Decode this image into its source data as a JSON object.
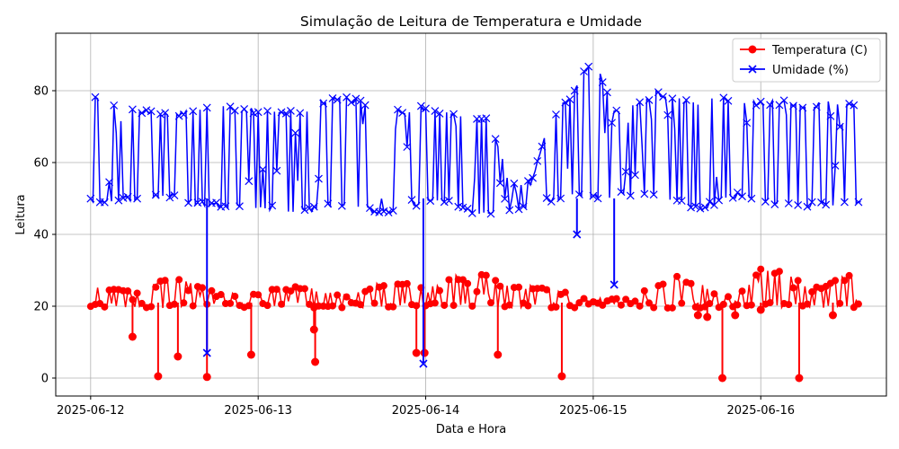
{
  "chart_data": {
    "type": "line",
    "title": "Simulação de Leitura de Temperatura e Umidade",
    "xlabel": "Data e Hora",
    "ylabel": "Leitura",
    "x_range_days": [
      "2025-06-11T19:00",
      "2025-06-16T18:00"
    ],
    "ylim": [
      -5,
      96
    ],
    "x_ticks": [
      "2025-06-12",
      "2025-06-13",
      "2025-06-14",
      "2025-06-15",
      "2025-06-16"
    ],
    "y_ticks": [
      0,
      20,
      40,
      60,
      80
    ],
    "grid": true,
    "legend": "top-right",
    "series": [
      {
        "name": "Temperatura (C)",
        "color": "#ff0000",
        "marker": "circle",
        "x": [
          "2025-06-12T00:00",
          "2025-06-12T03:00",
          "2025-06-12T06:00",
          "2025-06-12T09:00",
          "2025-06-12T12:00",
          "2025-06-12T15:00",
          "2025-06-12T18:00",
          "2025-06-12T21:00",
          "2025-06-13T00:00",
          "2025-06-13T03:00",
          "2025-06-13T06:00",
          "2025-06-13T09:00",
          "2025-06-13T12:00",
          "2025-06-13T15:00",
          "2025-06-13T18:00",
          "2025-06-13T21:00",
          "2025-06-14T00:00",
          "2025-06-14T03:00",
          "2025-06-14T06:00",
          "2025-06-14T09:00",
          "2025-06-14T12:00",
          "2025-06-14T15:00",
          "2025-06-14T18:00",
          "2025-06-14T21:00",
          "2025-06-15T00:00",
          "2025-06-15T03:00",
          "2025-06-15T06:00",
          "2025-06-15T09:00",
          "2025-06-15T12:00",
          "2025-06-15T15:00",
          "2025-06-15T18:00",
          "2025-06-15T21:00",
          "2025-06-16T00:00",
          "2025-06-16T03:00",
          "2025-06-16T06:00",
          "2025-06-16T09:00",
          "2025-06-16T12:00",
          "2025-06-16T14:30"
        ],
        "low": [
          19.5,
          19.5,
          19.5,
          19.5,
          19.5,
          19.5,
          19.5,
          19.5,
          19.5,
          19.5,
          19.5,
          19.5,
          19.5,
          19.5,
          19.5,
          19.5,
          19.5,
          19.5,
          19.5,
          19.5,
          19.5,
          19.5,
          19.5,
          19.5,
          20.0,
          20.0,
          20.0,
          19.5,
          19.5,
          19.5,
          19.5,
          20.0,
          19.5,
          19.5,
          19.5,
          19.5,
          19.5,
          19.5
        ],
        "high": [
          27.0,
          25.5,
          24.5,
          26.5,
          28.5,
          27.0,
          24.0,
          23.5,
          24.0,
          25.0,
          26.0,
          24.5,
          23.5,
          25.5,
          27.0,
          26.5,
          25.0,
          27.5,
          30.0,
          28.5,
          25.5,
          26.0,
          25.0,
          23.5,
          22.5,
          22.0,
          23.0,
          26.0,
          28.5,
          27.0,
          24.0,
          24.0,
          30.5,
          30.0,
          27.0,
          26.0,
          29.5,
          28.0
        ],
        "spikes": [
          {
            "x": "2025-06-12T06:00",
            "y": 11.5
          },
          {
            "x": "2025-06-12T09:40",
            "y": 0.5
          },
          {
            "x": "2025-06-12T12:30",
            "y": 6.0
          },
          {
            "x": "2025-06-12T16:40",
            "y": 0.3
          },
          {
            "x": "2025-06-12T23:00",
            "y": 6.5
          },
          {
            "x": "2025-06-13T08:00",
            "y": 13.5
          },
          {
            "x": "2025-06-13T08:10",
            "y": 4.5
          },
          {
            "x": "2025-06-13T22:40",
            "y": 7.0
          },
          {
            "x": "2025-06-13T23:50",
            "y": 7.0
          },
          {
            "x": "2025-06-14T10:20",
            "y": 6.5
          },
          {
            "x": "2025-06-14T19:30",
            "y": 0.5
          },
          {
            "x": "2025-06-15T15:00",
            "y": 17.5
          },
          {
            "x": "2025-06-15T16:20",
            "y": 17.0
          },
          {
            "x": "2025-06-15T18:30",
            "y": 0.0
          },
          {
            "x": "2025-06-15T20:20",
            "y": 17.5
          },
          {
            "x": "2025-06-16T00:00",
            "y": 19.0
          },
          {
            "x": "2025-06-16T05:30",
            "y": 0.0
          },
          {
            "x": "2025-06-16T10:20",
            "y": 17.5
          }
        ]
      },
      {
        "name": "Umidade (%)",
        "color": "#0000ff",
        "marker": "x",
        "x": [
          "2025-06-12T00:00",
          "2025-06-12T03:00",
          "2025-06-12T06:00",
          "2025-06-12T09:00",
          "2025-06-12T12:00",
          "2025-06-12T15:00",
          "2025-06-12T18:00",
          "2025-06-12T21:00",
          "2025-06-13T00:00",
          "2025-06-13T03:00",
          "2025-06-13T06:00",
          "2025-06-13T09:00",
          "2025-06-13T12:00",
          "2025-06-13T15:00",
          "2025-06-13T18:00",
          "2025-06-13T21:00",
          "2025-06-14T00:00",
          "2025-06-14T03:00",
          "2025-06-14T06:00",
          "2025-06-14T09:00",
          "2025-06-14T12:00",
          "2025-06-14T15:00",
          "2025-06-14T18:00",
          "2025-06-14T21:00",
          "2025-06-15T00:00",
          "2025-06-15T03:00",
          "2025-06-15T06:00",
          "2025-06-15T09:00",
          "2025-06-15T12:00",
          "2025-06-15T15:00",
          "2025-06-15T18:00",
          "2025-06-15T21:00",
          "2025-06-16T00:00",
          "2025-06-16T03:00",
          "2025-06-16T06:00",
          "2025-06-16T09:00",
          "2025-06-16T12:00",
          "2025-06-16T14:30"
        ],
        "low": [
          48.5,
          48.5,
          49.5,
          50.0,
          50.0,
          48.0,
          47.5,
          47.5,
          47.0,
          46.5,
          45.5,
          47.0,
          47.5,
          46.5,
          45.5,
          46.0,
          48.5,
          49.0,
          46.0,
          45.0,
          45.5,
          47.5,
          49.0,
          50.5,
          50.0,
          49.5,
          50.5,
          51.0,
          49.0,
          46.5,
          48.5,
          50.5,
          49.0,
          48.0,
          47.5,
          47.5,
          48.5,
          48.5
        ],
        "high": [
          79.0,
          76.0,
          75.5,
          74.5,
          74.0,
          75.5,
          76.0,
          75.5,
          75.0,
          75.0,
          74.0,
          77.5,
          78.5,
          77.5,
          75.0,
          75.0,
          76.0,
          74.5,
          74.0,
          73.0,
          55.0,
          55.0,
          73.0,
          80.0,
          90.0,
          75.0,
          76.5,
          80.0,
          78.0,
          77.5,
          79.0,
          77.5,
          77.0,
          77.5,
          76.0,
          77.0,
          78.0,
          75.0
        ],
        "spikes": [
          {
            "x": "2025-06-12T16:40",
            "y": 7.0
          },
          {
            "x": "2025-06-13T23:40",
            "y": 4.0
          },
          {
            "x": "2025-06-14T21:40",
            "y": 40.0
          },
          {
            "x": "2025-06-15T03:00",
            "y": 26.0
          }
        ]
      }
    ]
  }
}
